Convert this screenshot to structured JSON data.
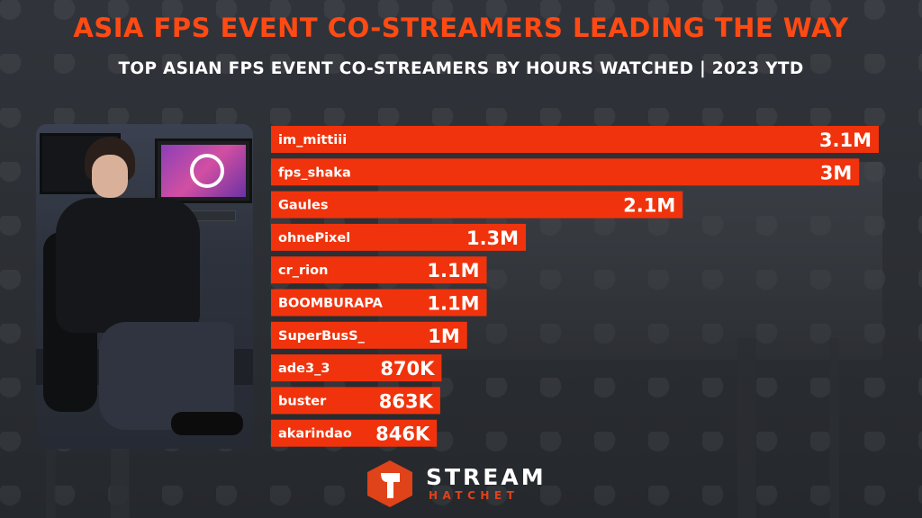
{
  "header": {
    "title": "ASIA FPS EVENT CO-STREAMERS LEADING THE WAY",
    "subtitle": "TOP ASIAN FPS EVENT CO-STREAMERS BY HOURS WATCHED | 2023 YTD"
  },
  "colors": {
    "accent": "#f0330c",
    "title": "#ff4a14",
    "text": "#ffffff",
    "background": "#2e3136"
  },
  "logo": {
    "word": "STREAM",
    "sub": "HATCHET",
    "icon": "hatchet-logo-icon"
  },
  "chart_data": {
    "type": "bar",
    "orientation": "horizontal",
    "title": "TOP ASIAN FPS EVENT CO-STREAMERS BY HOURS WATCHED | 2023 YTD",
    "categories": [
      "im_mittiii",
      "fps_shaka",
      "Gaules",
      "ohnePixel",
      "cr_rion",
      "BOOMBURAPA",
      "SuperBusS_",
      "ade3_3",
      "buster",
      "akarindao"
    ],
    "values": [
      3100000,
      3000000,
      2100000,
      1300000,
      1100000,
      1100000,
      1000000,
      870000,
      863000,
      846000
    ],
    "value_labels": [
      "3.1M",
      "3M",
      "2.1M",
      "1.3M",
      "1.1M",
      "1.1M",
      "1M",
      "870K",
      "863K",
      "846K"
    ],
    "xlabel": "",
    "ylabel": "",
    "grid": false,
    "legend": "none"
  }
}
